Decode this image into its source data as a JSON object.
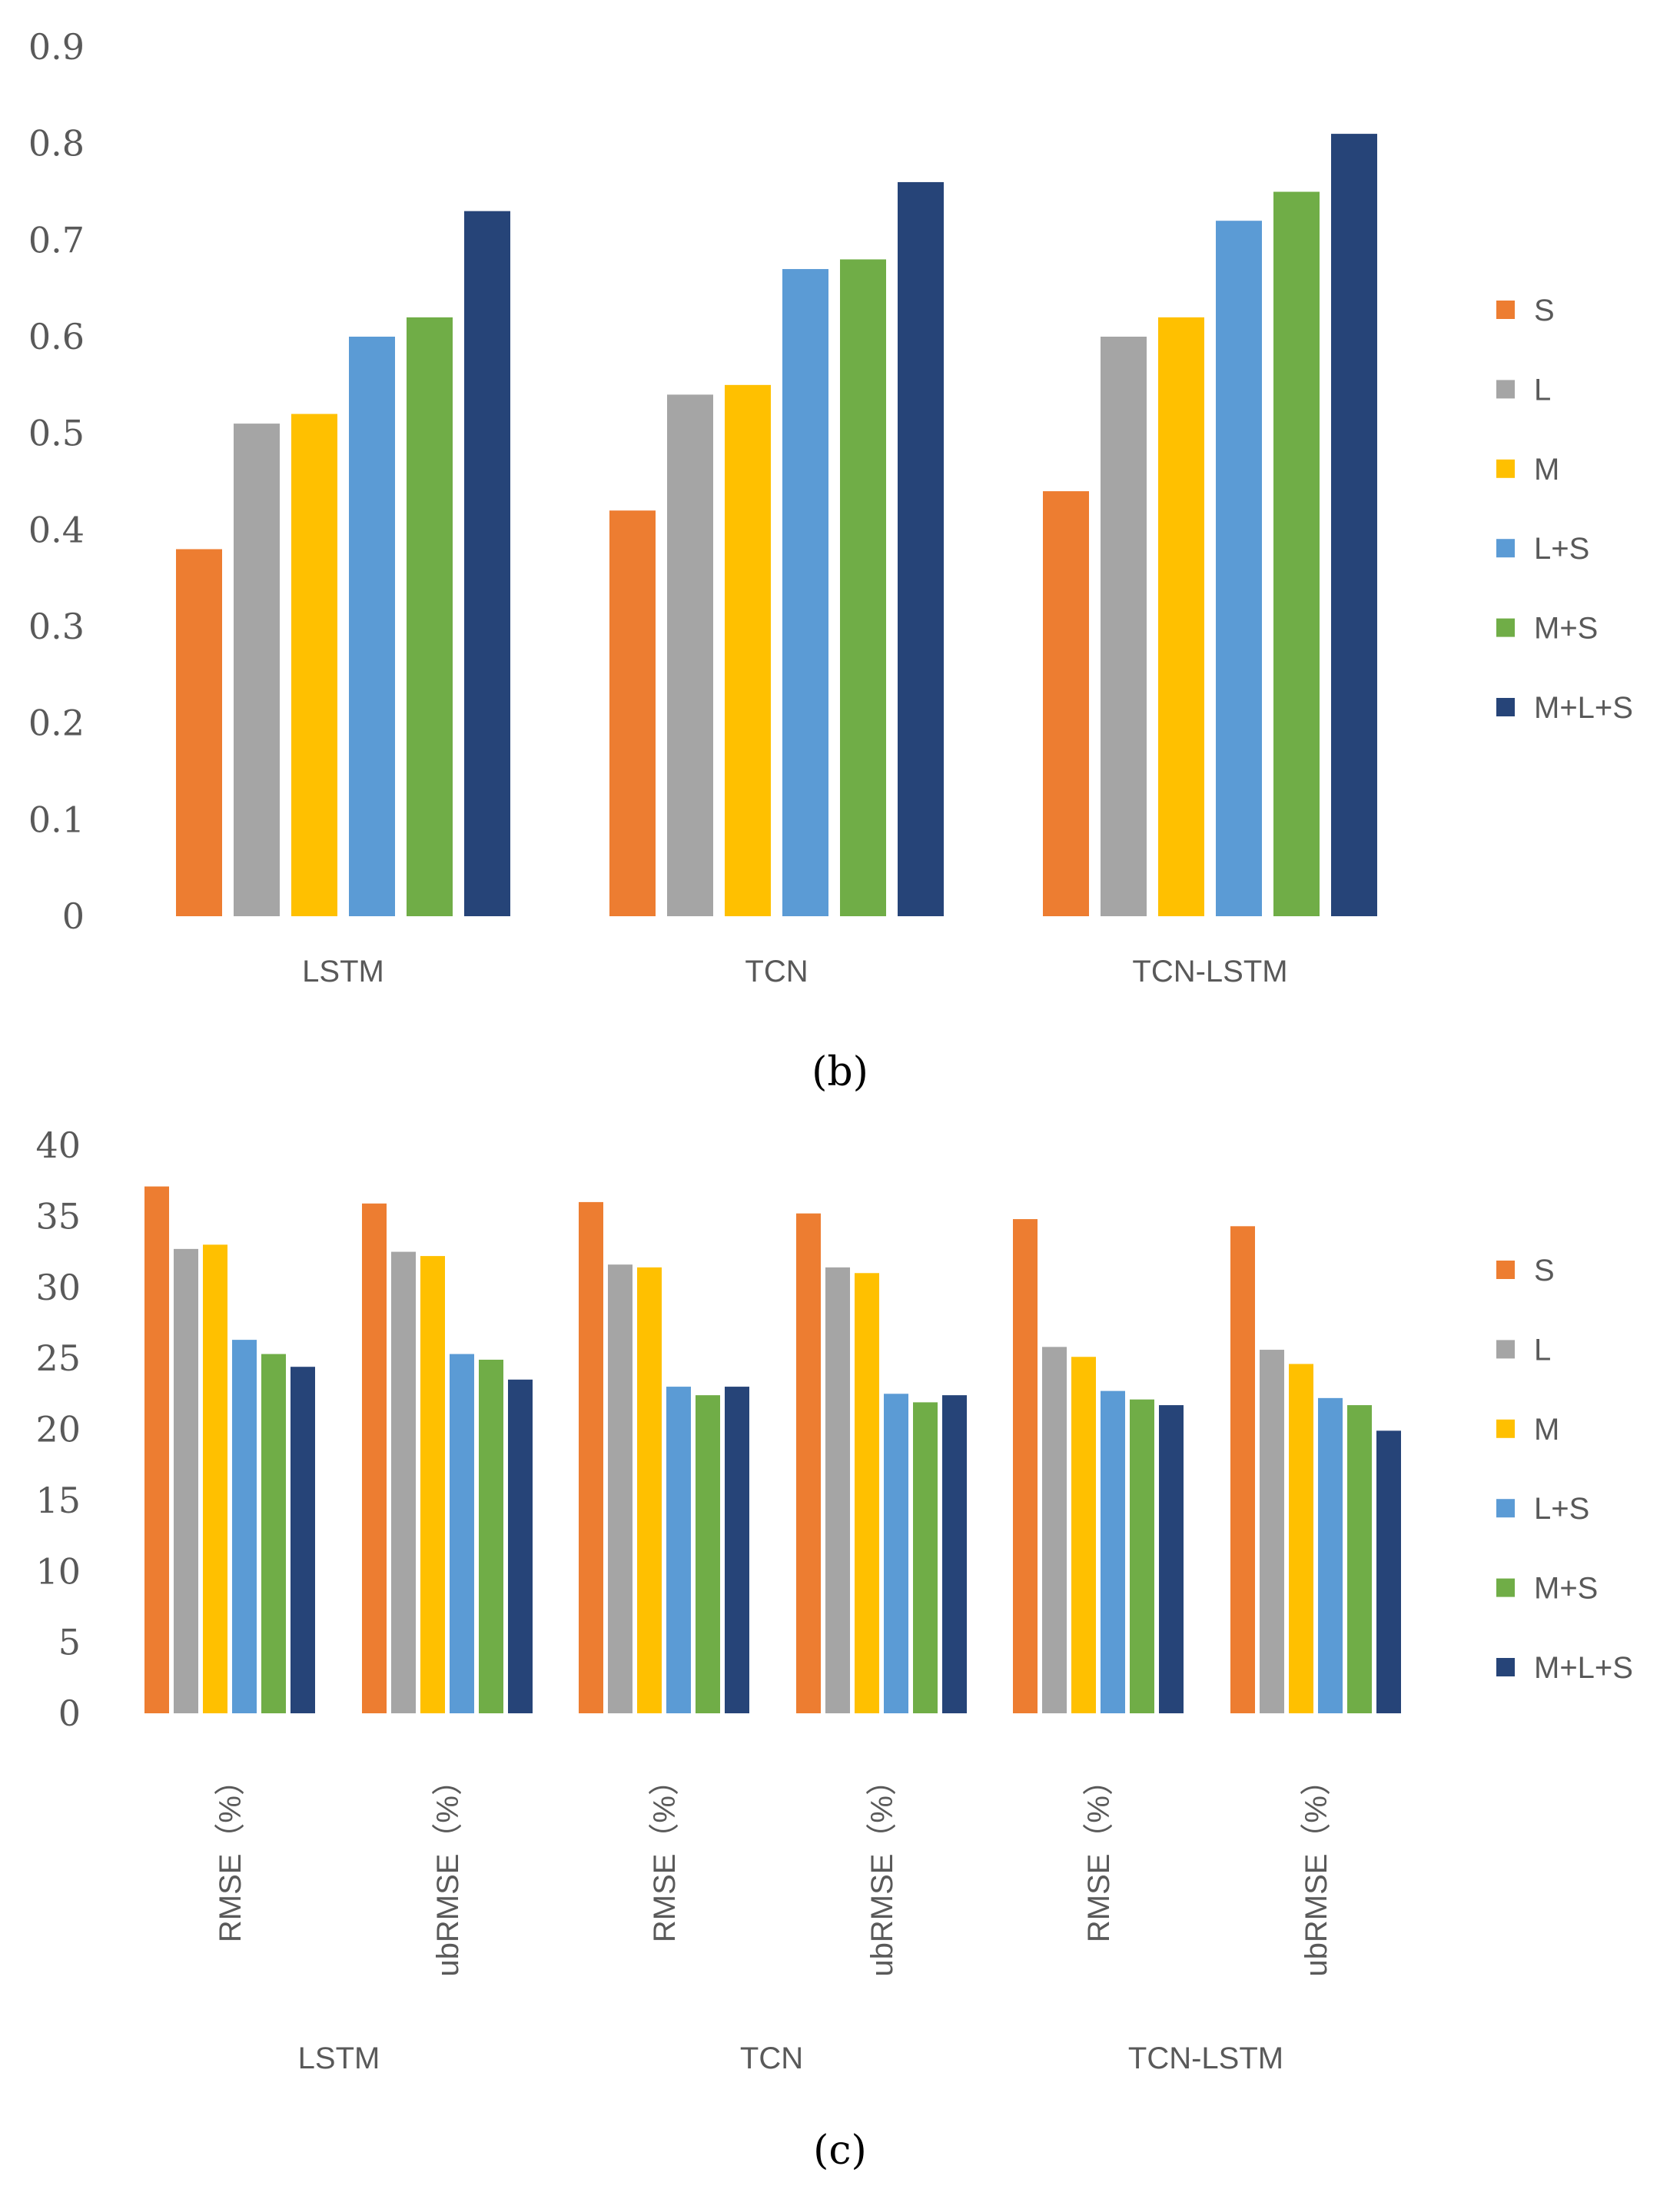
{
  "chart_data": [
    {
      "type": "bar",
      "panel_label": "(b)",
      "categories": [
        "LSTM",
        "TCN",
        "TCN-LSTM"
      ],
      "series": [
        {
          "name": "S",
          "color": "#ED7D31",
          "values": [
            0.38,
            0.42,
            0.44
          ]
        },
        {
          "name": "L",
          "color": "#A5A5A5",
          "values": [
            0.51,
            0.54,
            0.6
          ]
        },
        {
          "name": "M",
          "color": "#FFC000",
          "values": [
            0.52,
            0.55,
            0.62
          ]
        },
        {
          "name": "L+S",
          "color": "#5B9BD5",
          "values": [
            0.6,
            0.67,
            0.72
          ]
        },
        {
          "name": "M+S",
          "color": "#70AD47",
          "values": [
            0.62,
            0.68,
            0.75
          ]
        },
        {
          "name": "M+L+S",
          "color": "#264478",
          "values": [
            0.73,
            0.76,
            0.81
          ]
        }
      ],
      "y_ticks": [
        "0",
        "0.1",
        "0.2",
        "0.3",
        "0.4",
        "0.5",
        "0.6",
        "0.7",
        "0.8",
        "0.9"
      ],
      "ylim": [
        0,
        0.9
      ],
      "legend": "right",
      "grid": false
    },
    {
      "type": "bar",
      "panel_label": "(c)",
      "groups": [
        "LSTM",
        "TCN",
        "TCN-LSTM"
      ],
      "categories": [
        "RMSE（%）",
        "ubRMSE（%）",
        "RMSE（%）",
        "ubRMSE（%）",
        "RMSE（%）",
        "ubRMSE（%）"
      ],
      "series": [
        {
          "name": "S",
          "color": "#ED7D31",
          "values": [
            37.1,
            35.9,
            36.0,
            35.2,
            34.8,
            34.3
          ]
        },
        {
          "name": "L",
          "color": "#A5A5A5",
          "values": [
            32.7,
            32.5,
            31.6,
            31.4,
            25.8,
            25.6
          ]
        },
        {
          "name": "M",
          "color": "#FFC000",
          "values": [
            33.0,
            32.2,
            31.4,
            31.0,
            25.1,
            24.6
          ]
        },
        {
          "name": "L+S",
          "color": "#5B9BD5",
          "values": [
            26.3,
            25.3,
            23.0,
            22.5,
            22.7,
            22.2
          ]
        },
        {
          "name": "M+S",
          "color": "#70AD47",
          "values": [
            25.3,
            24.9,
            22.4,
            21.9,
            22.1,
            21.7
          ]
        },
        {
          "name": "M+L+S",
          "color": "#264478",
          "values": [
            24.4,
            23.5,
            23.0,
            22.4,
            21.7,
            19.9
          ]
        }
      ],
      "y_ticks": [
        "0",
        "5",
        "10",
        "15",
        "20",
        "25",
        "30",
        "35",
        "40"
      ],
      "ylim": [
        0,
        40
      ],
      "legend": "right",
      "grid": false
    }
  ]
}
